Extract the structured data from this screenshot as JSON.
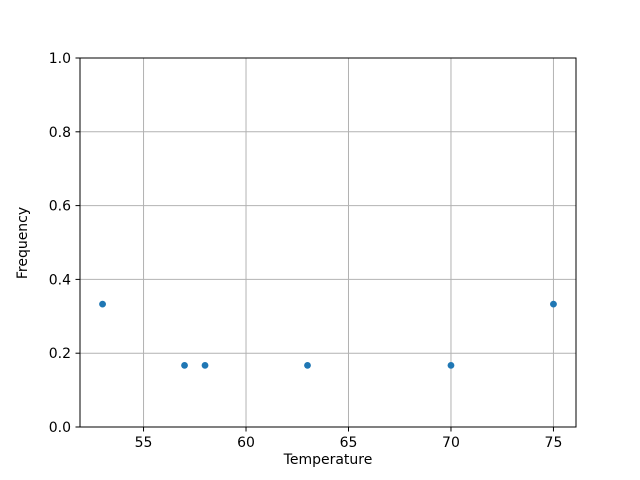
{
  "figure": {
    "background": "#ffffff"
  },
  "chart_data": {
    "type": "scatter",
    "title": "",
    "xlabel": "Temperature",
    "ylabel": "Frequency",
    "x": [
      53,
      57,
      58,
      63,
      70,
      75
    ],
    "y": [
      0.333,
      0.167,
      0.167,
      0.167,
      0.167,
      0.333
    ],
    "xlim": [
      51.9,
      76.1
    ],
    "ylim": [
      0.0,
      1.0
    ],
    "xticks": [
      "55",
      "60",
      "65",
      "70",
      "75"
    ],
    "yticks": [
      "0.0",
      "0.2",
      "0.4",
      "0.6",
      "0.8",
      "1.0"
    ],
    "grid": true,
    "legend_position": "none",
    "marker_color": "#1f77b4",
    "marker_radius": 3.4,
    "grid_color": "#b2b2b2",
    "spine_color": "#000000",
    "tick_color": "#000000",
    "tick_label_color": "#000000"
  }
}
